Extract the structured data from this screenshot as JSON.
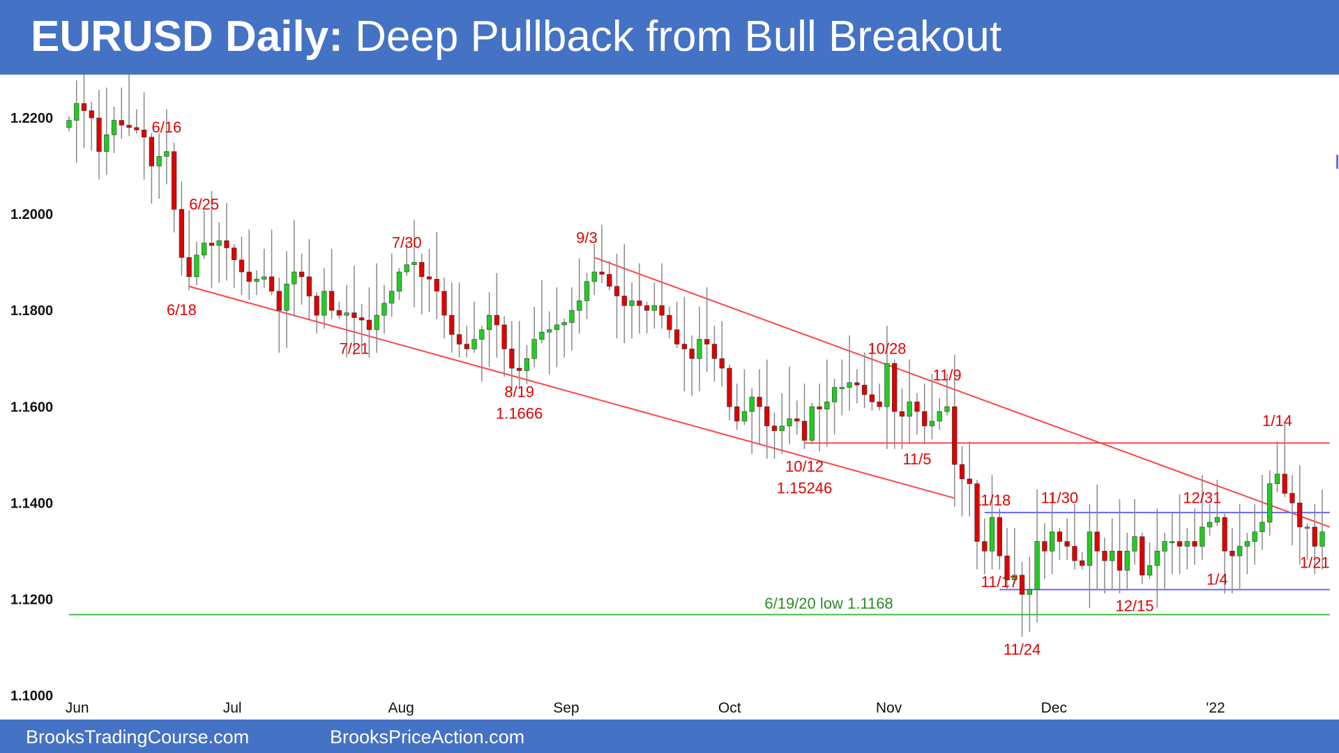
{
  "header": {
    "title_bold": "EURUSD Daily:",
    "title_rest": " Deep Pullback from Bull Breakout"
  },
  "footer": {
    "left": "BrooksTradingCourse.com",
    "right": "BrooksPriceAction.com"
  },
  "colors": {
    "header_bg": "#4472c4",
    "bull": "#22cc22",
    "bear": "#e00000",
    "trendline": "#ff4444",
    "range": "#6666ff",
    "support": "#44bb44",
    "annotation": "#e00000"
  },
  "chart_data": {
    "type": "candlestick",
    "title": "EURUSD Daily: Deep Pullback from Bull Breakout",
    "ylim": [
      1.095,
      1.229
    ],
    "yticks": [
      "1.2200",
      "1.2000",
      "1.1800",
      "1.1600",
      "1.1400",
      "1.1200",
      "1.1000"
    ],
    "xticks": [
      "Jun",
      "Jul",
      "Aug",
      "Sep",
      "Oct",
      "Nov",
      "Dec",
      "'22"
    ],
    "xtick_index": [
      1,
      22,
      44,
      66,
      88,
      109,
      131,
      153
    ],
    "num_bars": 168,
    "anchors": [
      [
        0,
        1.2195
      ],
      [
        1,
        1.223
      ],
      [
        2,
        1.2215
      ],
      [
        3,
        1.22
      ],
      [
        4,
        1.213
      ],
      [
        5,
        1.2165
      ],
      [
        6,
        1.2195
      ],
      [
        7,
        1.2185
      ],
      [
        8,
        1.218
      ],
      [
        9,
        1.2175
      ],
      [
        10,
        1.216
      ],
      [
        11,
        1.21
      ],
      [
        12,
        1.212
      ],
      [
        13,
        1.213
      ],
      [
        14,
        1.201
      ],
      [
        15,
        1.191
      ],
      [
        16,
        1.187
      ],
      [
        17,
        1.1915
      ],
      [
        18,
        1.194
      ],
      [
        19,
        1.1935
      ],
      [
        20,
        1.1945
      ],
      [
        21,
        1.193
      ],
      [
        22,
        1.1905
      ],
      [
        23,
        1.188
      ],
      [
        24,
        1.186
      ],
      [
        25,
        1.1865
      ],
      [
        26,
        1.187
      ],
      [
        27,
        1.184
      ],
      [
        28,
        1.18
      ],
      [
        29,
        1.1855
      ],
      [
        30,
        1.188
      ],
      [
        31,
        1.187
      ],
      [
        32,
        1.183
      ],
      [
        33,
        1.179
      ],
      [
        34,
        1.184
      ],
      [
        35,
        1.18
      ],
      [
        36,
        1.179
      ],
      [
        37,
        1.1795
      ],
      [
        38,
        1.1785
      ],
      [
        39,
        1.178
      ],
      [
        40,
        1.176
      ],
      [
        41,
        1.179
      ],
      [
        42,
        1.1815
      ],
      [
        43,
        1.184
      ],
      [
        44,
        1.188
      ],
      [
        45,
        1.1895
      ],
      [
        46,
        1.19
      ],
      [
        47,
        1.187
      ],
      [
        48,
        1.1865
      ],
      [
        49,
        1.184
      ],
      [
        50,
        1.179
      ],
      [
        51,
        1.175
      ],
      [
        52,
        1.173
      ],
      [
        53,
        1.172
      ],
      [
        54,
        1.174
      ],
      [
        55,
        1.176
      ],
      [
        56,
        1.179
      ],
      [
        57,
        1.177
      ],
      [
        58,
        1.172
      ],
      [
        59,
        1.168
      ],
      [
        60,
        1.1675
      ],
      [
        61,
        1.17
      ],
      [
        62,
        1.174
      ],
      [
        63,
        1.1755
      ],
      [
        64,
        1.176
      ],
      [
        65,
        1.177
      ],
      [
        66,
        1.1775
      ],
      [
        67,
        1.18
      ],
      [
        68,
        1.182
      ],
      [
        69,
        1.186
      ],
      [
        70,
        1.188
      ],
      [
        71,
        1.1875
      ],
      [
        72,
        1.185
      ],
      [
        73,
        1.183
      ],
      [
        74,
        1.181
      ],
      [
        75,
        1.182
      ],
      [
        76,
        1.181
      ],
      [
        77,
        1.18
      ],
      [
        78,
        1.181
      ],
      [
        79,
        1.179
      ],
      [
        80,
        1.176
      ],
      [
        81,
        1.173
      ],
      [
        82,
        1.172
      ],
      [
        83,
        1.17
      ],
      [
        84,
        1.174
      ],
      [
        85,
        1.173
      ],
      [
        86,
        1.17
      ],
      [
        87,
        1.168
      ],
      [
        88,
        1.16
      ],
      [
        89,
        1.157
      ],
      [
        90,
        1.159
      ],
      [
        91,
        1.162
      ],
      [
        92,
        1.16
      ],
      [
        93,
        1.156
      ],
      [
        94,
        1.155
      ],
      [
        95,
        1.156
      ],
      [
        96,
        1.1575
      ],
      [
        97,
        1.157
      ],
      [
        98,
        1.153
      ],
      [
        99,
        1.16
      ],
      [
        100,
        1.1595
      ],
      [
        101,
        1.161
      ],
      [
        102,
        1.164
      ],
      [
        103,
        1.164
      ],
      [
        104,
        1.165
      ],
      [
        105,
        1.1645
      ],
      [
        106,
        1.1625
      ],
      [
        107,
        1.161
      ],
      [
        108,
        1.16
      ],
      [
        109,
        1.169
      ],
      [
        110,
        1.159
      ],
      [
        111,
        1.158
      ],
      [
        112,
        1.161
      ],
      [
        113,
        1.159
      ],
      [
        114,
        1.156
      ],
      [
        115,
        1.157
      ],
      [
        116,
        1.159
      ],
      [
        117,
        1.16
      ],
      [
        118,
        1.148
      ],
      [
        119,
        1.145
      ],
      [
        120,
        1.144
      ],
      [
        121,
        1.132
      ],
      [
        122,
        1.13
      ],
      [
        123,
        1.137
      ],
      [
        124,
        1.129
      ],
      [
        125,
        1.124
      ],
      [
        126,
        1.125
      ],
      [
        127,
        1.121
      ],
      [
        128,
        1.122
      ],
      [
        129,
        1.132
      ],
      [
        130,
        1.13
      ],
      [
        131,
        1.134
      ],
      [
        132,
        1.132
      ],
      [
        133,
        1.131
      ],
      [
        134,
        1.128
      ],
      [
        135,
        1.127
      ],
      [
        136,
        1.134
      ],
      [
        137,
        1.13
      ],
      [
        138,
        1.128
      ],
      [
        139,
        1.13
      ],
      [
        140,
        1.126
      ],
      [
        141,
        1.13
      ],
      [
        142,
        1.133
      ],
      [
        143,
        1.125
      ],
      [
        144,
        1.127
      ],
      [
        145,
        1.13
      ],
      [
        146,
        1.132
      ],
      [
        147,
        1.132
      ],
      [
        148,
        1.131
      ],
      [
        149,
        1.132
      ],
      [
        150,
        1.131
      ],
      [
        151,
        1.135
      ],
      [
        152,
        1.136
      ],
      [
        153,
        1.137
      ],
      [
        154,
        1.13
      ],
      [
        155,
        1.129
      ],
      [
        156,
        1.131
      ],
      [
        157,
        1.132
      ],
      [
        158,
        1.134
      ],
      [
        159,
        1.136
      ],
      [
        160,
        1.144
      ],
      [
        161,
        1.146
      ],
      [
        162,
        1.142
      ],
      [
        163,
        1.14
      ],
      [
        164,
        1.135
      ],
      [
        165,
        1.135
      ],
      [
        166,
        1.131
      ],
      [
        167,
        1.134
      ]
    ],
    "lines": [
      {
        "name": "lower-channel",
        "from": [
          16,
          1.185
        ],
        "to": [
          118,
          1.141
        ]
      },
      {
        "name": "upper-trendline",
        "from": [
          70,
          1.191
        ],
        "to": [
          168,
          1.135
        ]
      },
      {
        "name": "oct-low",
        "from": [
          98,
          1.15246
        ],
        "to": [
          168,
          1.15246
        ]
      },
      {
        "name": "range-top",
        "from": [
          122,
          1.138
        ],
        "to": [
          168,
          1.138
        ]
      },
      {
        "name": "range-bottom",
        "from": [
          124,
          1.122
        ],
        "to": [
          168,
          1.122
        ]
      },
      {
        "name": "2020-low",
        "from": [
          0,
          1.1168
        ],
        "to": [
          168,
          1.1168
        ]
      }
    ],
    "annotations": [
      {
        "id": "a-616",
        "text": "6/16",
        "i": 13,
        "y": 1.217
      },
      {
        "id": "a-625",
        "text": "6/25",
        "i": 18,
        "y": 1.201
      },
      {
        "id": "a-618",
        "text": "6/18",
        "i": 15,
        "y": 1.179
      },
      {
        "id": "a-730",
        "text": "7/30",
        "i": 45,
        "y": 1.193
      },
      {
        "id": "a-721",
        "text": "7/21",
        "i": 38,
        "y": 1.171
      },
      {
        "id": "a-93",
        "text": "9/3",
        "i": 69,
        "y": 1.194
      },
      {
        "id": "a-819",
        "text": "8/19",
        "i": 60,
        "y": 1.162
      },
      {
        "id": "a-819v",
        "text": "1.1666",
        "i": 60,
        "y": 1.1575
      },
      {
        "id": "a-1028",
        "text": "10/28",
        "i": 109,
        "y": 1.171
      },
      {
        "id": "a-119",
        "text": "11/9",
        "i": 117,
        "y": 1.1655
      },
      {
        "id": "a-1012",
        "text": "10/12",
        "i": 98,
        "y": 1.1465
      },
      {
        "id": "a-1012v",
        "text": "1.15246",
        "i": 98,
        "y": 1.142
      },
      {
        "id": "a-115",
        "text": "11/5",
        "i": 113,
        "y": 1.148
      },
      {
        "id": "a-1118",
        "text": "11/18",
        "i": 123,
        "y": 1.1395
      },
      {
        "id": "a-1130",
        "text": "11/30",
        "i": 132,
        "y": 1.14
      },
      {
        "id": "a-1231",
        "text": "12/31",
        "i": 151,
        "y": 1.14
      },
      {
        "id": "a-114",
        "text": "1/14",
        "i": 161,
        "y": 1.156
      },
      {
        "id": "a-1117",
        "text": "11/17",
        "i": 124,
        "y": 1.1225
      },
      {
        "id": "a-1215",
        "text": "12/15",
        "i": 142,
        "y": 1.1175
      },
      {
        "id": "a-14",
        "text": "1/4",
        "i": 153,
        "y": 1.123
      },
      {
        "id": "a-121",
        "text": "1/21",
        "i": 166,
        "y": 1.1265
      },
      {
        "id": "a-1124",
        "text": "11/24",
        "i": 127,
        "y": 1.1085
      }
    ],
    "support_label": {
      "text": "6/19/20 low 1.1168",
      "i": 98,
      "y": 1.118
    }
  }
}
